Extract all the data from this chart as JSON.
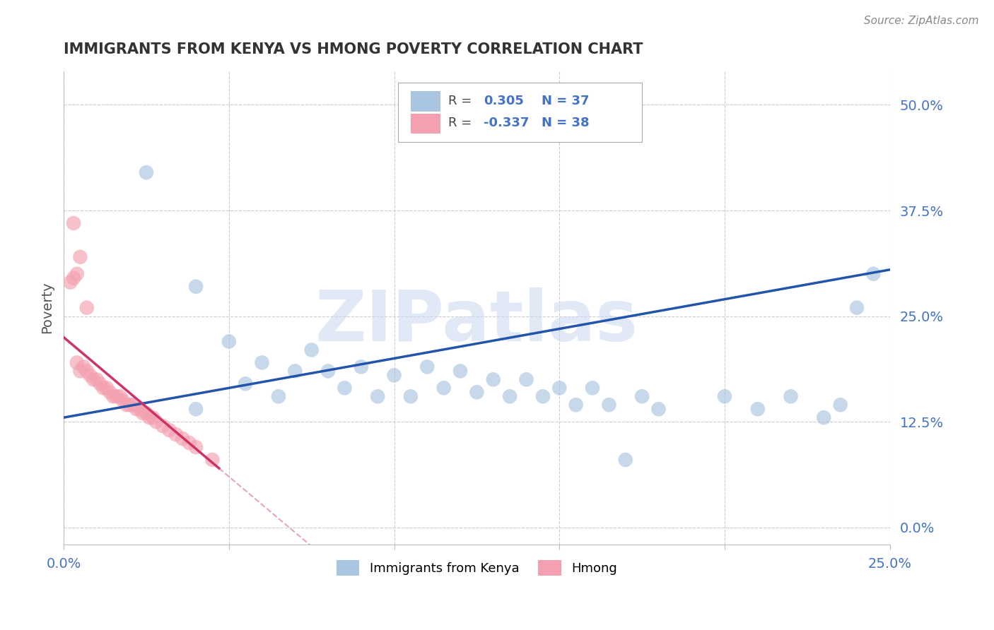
{
  "title": "IMMIGRANTS FROM KENYA VS HMONG POVERTY CORRELATION CHART",
  "source_text": "Source: ZipAtlas.com",
  "ylabel": "Poverty",
  "xlim": [
    0.0,
    0.25
  ],
  "ylim": [
    -0.02,
    0.54
  ],
  "xticks": [
    0.0,
    0.05,
    0.1,
    0.15,
    0.2,
    0.25
  ],
  "xtick_labels": [
    "0.0%",
    "",
    "",
    "",
    "",
    "25.0%"
  ],
  "ytick_positions_right": [
    0.0,
    0.125,
    0.25,
    0.375,
    0.5
  ],
  "ytick_labels_right": [
    "0.0%",
    "12.5%",
    "25.0%",
    "37.5%",
    "50.0%"
  ],
  "kenya_R": 0.305,
  "kenya_N": 37,
  "hmong_R": -0.337,
  "hmong_N": 38,
  "kenya_color": "#a8c4e0",
  "hmong_color": "#f4a0b0",
  "kenya_line_color": "#2255aa",
  "hmong_line_color": "#cc3366",
  "background_color": "#ffffff",
  "grid_color": "#cccccc",
  "watermark": "ZIPatlas",
  "kenya_x": [
    0.025,
    0.04,
    0.04,
    0.05,
    0.055,
    0.06,
    0.065,
    0.07,
    0.075,
    0.08,
    0.085,
    0.09,
    0.095,
    0.1,
    0.105,
    0.11,
    0.115,
    0.12,
    0.125,
    0.13,
    0.135,
    0.14,
    0.145,
    0.15,
    0.155,
    0.16,
    0.165,
    0.17,
    0.175,
    0.18,
    0.2,
    0.21,
    0.22,
    0.23,
    0.235,
    0.24,
    0.245
  ],
  "kenya_y": [
    0.42,
    0.285,
    0.14,
    0.22,
    0.17,
    0.195,
    0.155,
    0.185,
    0.21,
    0.185,
    0.165,
    0.19,
    0.155,
    0.18,
    0.155,
    0.19,
    0.165,
    0.185,
    0.16,
    0.175,
    0.155,
    0.175,
    0.155,
    0.165,
    0.145,
    0.165,
    0.145,
    0.08,
    0.155,
    0.14,
    0.155,
    0.14,
    0.155,
    0.13,
    0.145,
    0.26,
    0.3
  ],
  "hmong_x": [
    0.002,
    0.003,
    0.004,
    0.004,
    0.005,
    0.006,
    0.007,
    0.008,
    0.009,
    0.01,
    0.011,
    0.012,
    0.013,
    0.014,
    0.015,
    0.016,
    0.017,
    0.018,
    0.019,
    0.02,
    0.021,
    0.022,
    0.023,
    0.024,
    0.025,
    0.026,
    0.027,
    0.028,
    0.03,
    0.032,
    0.034,
    0.036,
    0.038,
    0.04,
    0.045,
    0.003,
    0.005,
    0.007
  ],
  "hmong_y": [
    0.29,
    0.295,
    0.3,
    0.195,
    0.185,
    0.19,
    0.185,
    0.18,
    0.175,
    0.175,
    0.17,
    0.165,
    0.165,
    0.16,
    0.155,
    0.155,
    0.155,
    0.15,
    0.145,
    0.145,
    0.145,
    0.14,
    0.14,
    0.135,
    0.135,
    0.13,
    0.13,
    0.125,
    0.12,
    0.115,
    0.11,
    0.105,
    0.1,
    0.095,
    0.08,
    0.36,
    0.32,
    0.26
  ],
  "kenya_line_x0": 0.0,
  "kenya_line_x1": 0.25,
  "kenya_line_y0": 0.13,
  "kenya_line_y1": 0.305,
  "hmong_line_x0": 0.0,
  "hmong_line_x1": 0.047,
  "hmong_line_y0": 0.225,
  "hmong_line_y1": 0.07
}
